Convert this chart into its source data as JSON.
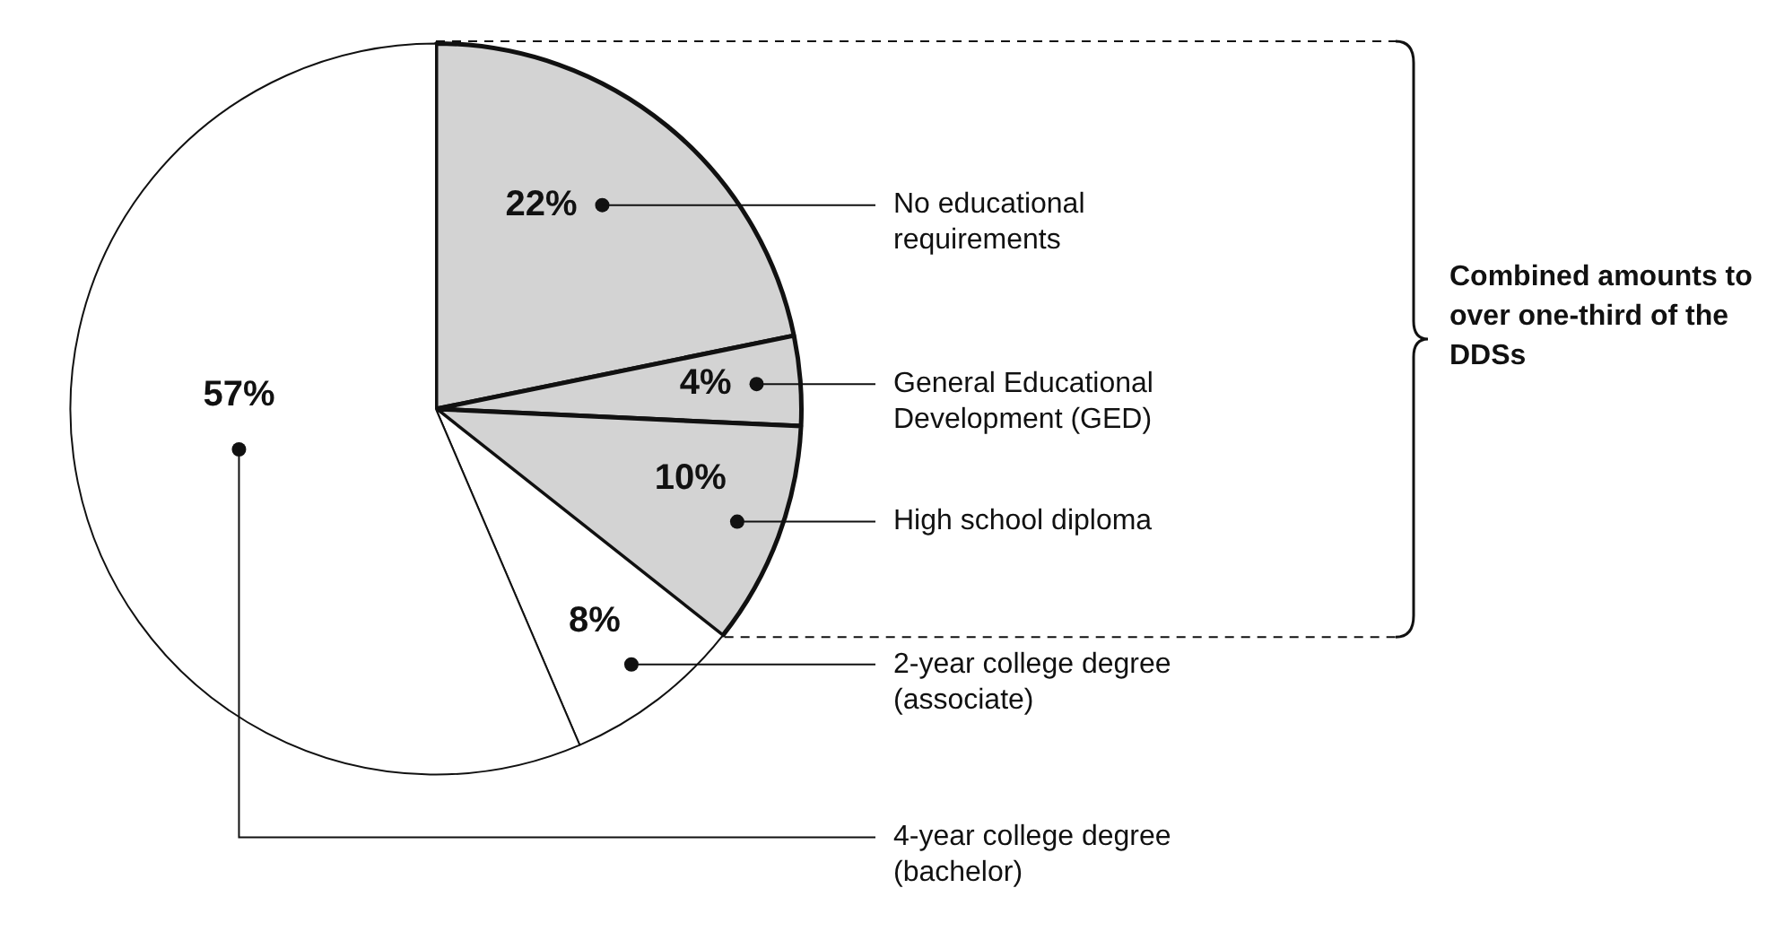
{
  "chart_data": {
    "type": "pie",
    "categories": [
      "No educational requirements",
      "General Educational Development (GED)",
      "High school diploma",
      "2-year college degree (associate)",
      "4-year college degree (bachelor)"
    ],
    "values": [
      22,
      4,
      10,
      8,
      57
    ],
    "value_labels": [
      "22%",
      "4%",
      "10%",
      "8%",
      "57%"
    ],
    "colors": [
      "#d3d3d3",
      "#d3d3d3",
      "#d3d3d3",
      "#ffffff",
      "#ffffff"
    ],
    "legend": false,
    "annotations": [
      "Combined amounts to over one-third of the DDSs"
    ]
  }
}
